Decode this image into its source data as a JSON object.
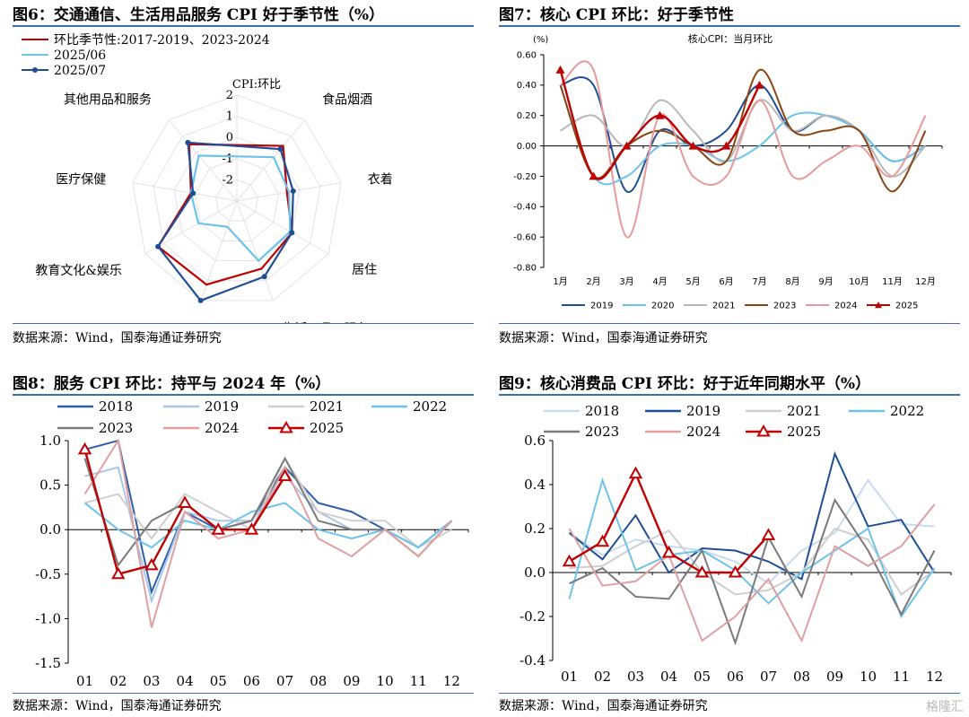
{
  "charts": [
    {
      "title": "图6：交通通信、生活用品服务 CPI 好于季节性（%）",
      "source": "数据来源：Wind，国泰海通证券研究",
      "chart_data": {
        "type": "radar",
        "axis_title": "CPI:环比",
        "axes": [
          "食品烟酒",
          "衣着",
          "居住",
          "生活用品&服务",
          "交通和通信",
          "教育文化&娱乐",
          "医疗保健",
          "其他用品和服务"
        ],
        "radial_ticks": [
          -2,
          -1,
          0,
          1,
          2
        ],
        "range": [
          -3,
          2
        ],
        "series": [
          {
            "name": "环比季节性:2017-2019、2023-2024",
            "color": "#c00000",
            "marker": "none",
            "values": [
              0.4,
              -0.6,
              0.0,
              0.4,
              1.2,
              1.3,
              -0.8,
              0.5
            ]
          },
          {
            "name": "2025/06",
            "color": "#6cc3ea",
            "marker": "none",
            "values": [
              -0.3,
              -0.5,
              -0.1,
              0.0,
              -1.7,
              -0.9,
              -0.8,
              -0.2
            ]
          },
          {
            "name": "2025/07",
            "color": "#1f4e96",
            "marker": "circle",
            "values": [
              0.2,
              -0.3,
              0.0,
              0.8,
              2.0,
              1.3,
              -0.9,
              0.6
            ]
          }
        ]
      }
    },
    {
      "title": "图7：核心 CPI 环比：好于季节性",
      "source": "数据来源：Wind，国泰海通证券研究",
      "chart_data": {
        "type": "line",
        "title": "核心CPI：当月环比",
        "unit": "(%)",
        "categories": [
          "1月",
          "2月",
          "3月",
          "4月",
          "5月",
          "6月",
          "7月",
          "8月",
          "9月",
          "10月",
          "11月",
          "12月"
        ],
        "ylim": [
          -0.8,
          0.6
        ],
        "yticks": [
          -0.8,
          -0.6,
          -0.4,
          -0.2,
          0.0,
          0.2,
          0.4,
          0.6
        ],
        "ytick_labels": [
          "-0.80",
          "-0.60",
          "-0.40",
          "-0.20",
          "0.00",
          "0.20",
          "0.40",
          "0.60"
        ],
        "legend_position": "bottom",
        "series": [
          {
            "name": "2019",
            "color": "#1f4e96",
            "marker": "none",
            "values": [
              0.4,
              0.4,
              -0.3,
              0.1,
              0.0,
              0.1,
              0.4,
              0.1,
              0.2,
              0.1,
              -0.1,
              0.0
            ]
          },
          {
            "name": "2020",
            "color": "#6cc3ea",
            "marker": "none",
            "values": [
              0.4,
              -0.2,
              -0.2,
              0.0,
              0.0,
              -0.1,
              0.0,
              0.2,
              0.2,
              0.1,
              -0.1,
              0.0
            ]
          },
          {
            "name": "2021",
            "color": "#b8b8b8",
            "marker": "none",
            "values": [
              0.1,
              0.2,
              0.0,
              0.3,
              0.1,
              -0.1,
              0.3,
              0.1,
              0.2,
              0.1,
              -0.2,
              0.0
            ]
          },
          {
            "name": "2023",
            "color": "#8b4513",
            "marker": "none",
            "values": [
              0.4,
              -0.2,
              0.0,
              0.1,
              0.0,
              -0.1,
              0.5,
              0.1,
              0.1,
              0.1,
              -0.3,
              0.1
            ]
          },
          {
            "name": "2024",
            "color": "#e89a9a",
            "marker": "none",
            "values": [
              0.4,
              0.5,
              -0.6,
              0.2,
              -0.2,
              -0.2,
              0.3,
              -0.2,
              -0.1,
              0.0,
              -0.2,
              0.2
            ]
          },
          {
            "name": "2025",
            "color": "#c00000",
            "marker": "triangle",
            "values": [
              0.5,
              -0.2,
              0.0,
              0.2,
              0.0,
              0.0,
              0.4,
              null,
              null,
              null,
              null,
              null
            ]
          }
        ]
      }
    },
    {
      "title": "图8：服务 CPI 环比：持平与 2024 年（%）",
      "source": "数据来源：Wind，国泰海通证券研究",
      "chart_data": {
        "type": "line",
        "categories": [
          "01",
          "02",
          "03",
          "04",
          "05",
          "06",
          "07",
          "08",
          "09",
          "10",
          "11",
          "12"
        ],
        "ylim": [
          -1.5,
          1.0
        ],
        "yticks": [
          -1.5,
          -1.0,
          -0.5,
          0.0,
          0.5,
          1.0
        ],
        "ytick_labels": [
          "-1.5",
          "-1.0",
          "-0.5",
          "0.0",
          "0.5",
          "1.0"
        ],
        "legend_position": "top",
        "series": [
          {
            "name": "2018",
            "color": "#2e5ea8",
            "marker": "none",
            "values": [
              0.9,
              1.0,
              -0.7,
              0.2,
              0.0,
              0.1,
              0.7,
              0.3,
              0.2,
              0.0,
              -0.2,
              0.1
            ]
          },
          {
            "name": "2019",
            "color": "#a9c6e8",
            "marker": "none",
            "values": [
              0.6,
              0.7,
              -0.8,
              0.2,
              0.1,
              0.1,
              0.6,
              0.2,
              0.0,
              0.0,
              -0.2,
              0.1
            ]
          },
          {
            "name": "2021",
            "color": "#cfcfcf",
            "marker": "none",
            "values": [
              0.3,
              0.4,
              -0.1,
              0.4,
              0.2,
              0.0,
              0.8,
              0.2,
              0.1,
              0.1,
              -0.2,
              0.0
            ]
          },
          {
            "name": "2022",
            "color": "#6cc3ea",
            "marker": "none",
            "values": [
              0.3,
              0.0,
              -0.2,
              0.1,
              0.0,
              0.2,
              0.3,
              0.0,
              -0.1,
              0.0,
              -0.2,
              0.1
            ]
          },
          {
            "name": "2023",
            "color": "#7a7a7a",
            "marker": "none",
            "values": [
              0.8,
              -0.4,
              0.1,
              0.3,
              0.0,
              0.1,
              0.8,
              0.1,
              0.0,
              0.0,
              -0.3,
              0.1
            ]
          },
          {
            "name": "2024",
            "color": "#e0a0a0",
            "marker": "none",
            "values": [
              0.4,
              1.0,
              -1.1,
              0.2,
              -0.1,
              0.0,
              0.7,
              -0.1,
              -0.3,
              0.0,
              -0.3,
              0.1
            ]
          },
          {
            "name": "2025",
            "color": "#c00000",
            "marker": "triangle",
            "values": [
              0.9,
              -0.5,
              -0.4,
              0.3,
              0.0,
              0.0,
              0.6,
              null,
              null,
              null,
              null,
              null
            ]
          }
        ]
      }
    },
    {
      "title": "图9：核心消费品 CPI 环比：好于近年同期水平（%）",
      "source": "数据来源：Wind，国泰海通证券研究",
      "chart_data": {
        "type": "line",
        "categories": [
          "01",
          "02",
          "03",
          "04",
          "05",
          "06",
          "07",
          "08",
          "09",
          "10",
          "11",
          "12"
        ],
        "ylim": [
          -0.4,
          0.6
        ],
        "yticks": [
          -0.4,
          -0.2,
          0.0,
          0.2,
          0.4,
          0.6
        ],
        "ytick_labels": [
          "-0.4",
          "-0.2",
          "0.0",
          "0.2",
          "0.4",
          "0.6"
        ],
        "legend_position": "top",
        "series": [
          {
            "name": "2018",
            "color": "#c8daf0",
            "marker": "none",
            "values": [
              0.18,
              0.08,
              0.15,
              0.12,
              0.1,
              0.05,
              -0.05,
              0.1,
              0.18,
              0.42,
              0.22,
              0.21
            ]
          },
          {
            "name": "2019",
            "color": "#1f4e96",
            "marker": "none",
            "values": [
              0.18,
              0.06,
              0.26,
              0.0,
              0.11,
              0.1,
              0.05,
              -0.03,
              0.54,
              0.21,
              0.24,
              0.0
            ]
          },
          {
            "name": "2021",
            "color": "#cfcfcf",
            "marker": "none",
            "values": [
              0.02,
              0.03,
              0.12,
              0.19,
              0.0,
              -0.1,
              -0.08,
              0.0,
              0.2,
              0.15,
              -0.1,
              0.01
            ]
          },
          {
            "name": "2022",
            "color": "#6cc3ea",
            "marker": "none",
            "values": [
              -0.12,
              0.42,
              0.01,
              0.08,
              0.1,
              0.01,
              -0.14,
              0.0,
              0.1,
              0.2,
              -0.2,
              0.02
            ]
          },
          {
            "name": "2023",
            "color": "#7a7a7a",
            "marker": "none",
            "values": [
              -0.05,
              0.02,
              -0.11,
              -0.12,
              0.1,
              -0.32,
              0.16,
              -0.11,
              0.33,
              0.1,
              -0.19,
              0.1
            ]
          },
          {
            "name": "2024",
            "color": "#e0a0a0",
            "marker": "none",
            "values": [
              0.2,
              -0.06,
              -0.04,
              0.08,
              -0.31,
              -0.2,
              -0.03,
              -0.31,
              0.12,
              0.03,
              0.12,
              0.31
            ]
          },
          {
            "name": "2025",
            "color": "#c00000",
            "marker": "triangle",
            "values": [
              0.05,
              0.14,
              0.45,
              0.09,
              0.0,
              0.0,
              0.17,
              null,
              null,
              null,
              null,
              null
            ]
          }
        ]
      }
    }
  ],
  "watermark": "格隆汇"
}
